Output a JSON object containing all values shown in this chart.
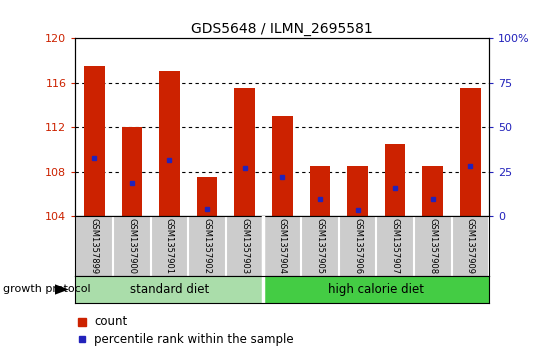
{
  "title": "GDS5648 / ILMN_2695581",
  "samples": [
    "GSM1357899",
    "GSM1357900",
    "GSM1357901",
    "GSM1357902",
    "GSM1357903",
    "GSM1357904",
    "GSM1357905",
    "GSM1357906",
    "GSM1357907",
    "GSM1357908",
    "GSM1357909"
  ],
  "count_values": [
    117.5,
    112.0,
    117.0,
    107.5,
    115.5,
    113.0,
    108.5,
    108.5,
    110.5,
    108.5,
    115.5
  ],
  "percentile_values": [
    109.2,
    107.0,
    109.0,
    104.6,
    108.3,
    107.5,
    105.5,
    104.5,
    106.5,
    105.5,
    108.5
  ],
  "y_min": 104,
  "y_max": 120,
  "y_ticks_left": [
    104,
    108,
    112,
    116,
    120
  ],
  "y_ticks_right": [
    0,
    25,
    50,
    75,
    100
  ],
  "bar_color": "#CC2200",
  "percentile_color": "#2222BB",
  "bar_width": 0.55,
  "grid_lines": [
    108,
    112,
    116
  ],
  "group1_label": "standard diet",
  "group2_label": "high calorie diet",
  "tick_color_left": "#CC2200",
  "tick_color_right": "#2222BB",
  "group_protocol_label": "growth protocol",
  "legend_count": "count",
  "legend_percentile": "percentile rank within the sample",
  "bg_sample_color": "#CCCCCC",
  "bg_group_color_left": "#AADDAA",
  "bg_group_color_right": "#44CC44"
}
